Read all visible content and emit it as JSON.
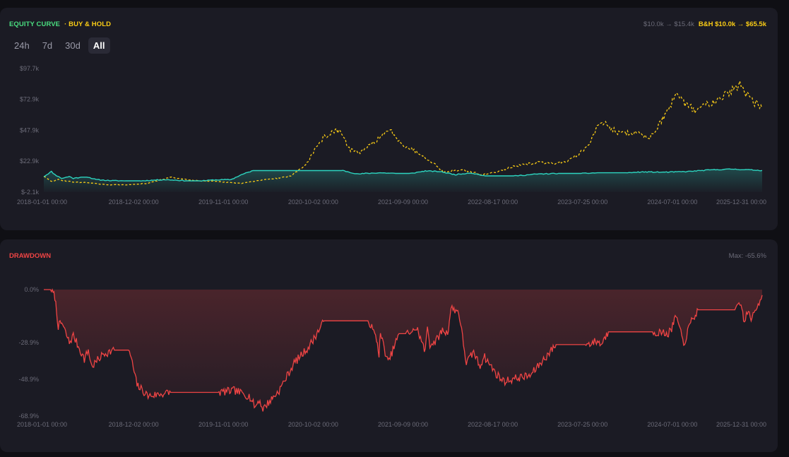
{
  "equity_panel": {
    "legend_equity": "EQUITY CURVE",
    "legend_bh": "· BUY & HOLD",
    "summary_strategy": "$10.0k → $15.4k",
    "summary_bh": "B&H $10.0k → $65.5k",
    "range_tabs": [
      {
        "label": "24h",
        "active": false
      },
      {
        "label": "7d",
        "active": false
      },
      {
        "label": "30d",
        "active": false
      },
      {
        "label": "All",
        "active": true
      }
    ]
  },
  "drawdown_panel": {
    "title": "DRAWDOWN",
    "max_label": "Max: -65.6%"
  },
  "colors": {
    "equity": "#2dd4bf",
    "bh": "#facc15",
    "drawdown": "#ef4444",
    "legend_equity": "#4ade80"
  },
  "chart_data": [
    {
      "type": "line",
      "x_tick_labels": [
        "2018-01-01 00:00",
        "2018-12-02 00:00",
        "2019-11-01 00:00",
        "2020-10-02 00:00",
        "2021-09-09 00:00",
        "2022-08-17 00:00",
        "2023-07-25 00:00",
        "2024-07-01 00:00",
        "2025-12-31 00:00"
      ],
      "y_tick_labels": [
        "$97.7k",
        "$72.9k",
        "$47.9k",
        "$22.9k",
        "$-2.1k"
      ],
      "ylim": [
        -2.1,
        97.7
      ],
      "xlim": [
        "2018-01-01",
        "2025-12-31"
      ],
      "y_unit": "$k",
      "legend": "top-left",
      "grid": false,
      "series": [
        {
          "name": "EQUITY CURVE",
          "style": "solid",
          "x": [
            "2018-01-01",
            "2018-02-01",
            "2018-02-15",
            "2018-03-15",
            "2018-04-15",
            "2018-05-01",
            "2018-06-01",
            "2018-07-01",
            "2018-08-01",
            "2018-10-01",
            "2018-12-01",
            "2019-02-01",
            "2019-05-01",
            "2019-07-01",
            "2019-08-01",
            "2019-10-01",
            "2019-12-01",
            "2020-02-01",
            "2020-03-15",
            "2020-05-01",
            "2020-08-01",
            "2020-11-01",
            "2021-02-01",
            "2021-05-01",
            "2021-07-01",
            "2021-08-01",
            "2021-10-01",
            "2021-12-01",
            "2022-02-01",
            "2022-04-01",
            "2022-06-01",
            "2022-08-01",
            "2022-10-01",
            "2022-12-01",
            "2023-02-01",
            "2023-04-01",
            "2023-07-01",
            "2023-10-01",
            "2024-01-01",
            "2024-03-01",
            "2024-05-01",
            "2024-07-01",
            "2024-09-01",
            "2024-12-01",
            "2025-03-01",
            "2025-06-01",
            "2025-09-01",
            "2025-12-31"
          ],
          "y": [
            10.5,
            14.5,
            12,
            9,
            10.5,
            9,
            10,
            10,
            8,
            7.2,
            7,
            7,
            8,
            7.5,
            7,
            7,
            7.8,
            8,
            12,
            15.3,
            15.3,
            15.3,
            15.3,
            15.3,
            12.5,
            13,
            13.5,
            13,
            13,
            15,
            14.5,
            12,
            13.5,
            11,
            11,
            11,
            12.5,
            13,
            13,
            13.5,
            13.5,
            13.5,
            14.2,
            14,
            14.5,
            15.8,
            16.5,
            15.4
          ]
        },
        {
          "name": "BUY & HOLD",
          "style": "dashed",
          "x": [
            "2018-01-01",
            "2018-02-01",
            "2018-03-01",
            "2018-05-01",
            "2018-07-01",
            "2018-09-01",
            "2018-12-01",
            "2019-03-01",
            "2019-06-01",
            "2019-07-01",
            "2019-10-01",
            "2019-12-01",
            "2020-03-15",
            "2020-06-01",
            "2020-08-01",
            "2020-10-01",
            "2020-12-01",
            "2021-01-01",
            "2021-02-15",
            "2021-04-15",
            "2021-06-01",
            "2021-07-15",
            "2021-09-01",
            "2021-11-10",
            "2022-01-01",
            "2022-03-01",
            "2022-05-01",
            "2022-06-15",
            "2022-09-01",
            "2022-11-15",
            "2023-01-01",
            "2023-03-15",
            "2023-07-01",
            "2023-09-01",
            "2023-11-01",
            "2024-01-15",
            "2024-03-15",
            "2024-06-01",
            "2024-08-01",
            "2024-10-01",
            "2024-12-01",
            "2025-01-15",
            "2025-04-01",
            "2025-05-15",
            "2025-07-15",
            "2025-09-01",
            "2025-10-06",
            "2025-11-15",
            "2025-12-31"
          ],
          "y": [
            10.5,
            6.5,
            8,
            6,
            5.5,
            4,
            3.7,
            5,
            10,
            9,
            7,
            6.5,
            5,
            7.5,
            9,
            11,
            20,
            30,
            43,
            48,
            32,
            30,
            38,
            48,
            36,
            30,
            22,
            14,
            16,
            12,
            13.5,
            18,
            22,
            21,
            23,
            33,
            55,
            45,
            46,
            42,
            60,
            75,
            64,
            68,
            75,
            80,
            85,
            72,
            65.5
          ]
        }
      ]
    },
    {
      "type": "area",
      "title": "DRAWDOWN",
      "x_tick_labels": [
        "2018-01-01 00:00",
        "2018-12-02 00:00",
        "2019-11-01 00:00",
        "2020-10-02 00:00",
        "2021-09-09 00:00",
        "2022-08-17 00:00",
        "2023-07-25 00:00",
        "2024-07-01 00:00",
        "2025-12-31 00:00"
      ],
      "y_tick_labels": [
        "0.0%",
        "-28.9%",
        "-48.9%",
        "-68.9%"
      ],
      "ylim": [
        -68.9,
        0
      ],
      "xlim": [
        "2018-01-01",
        "2025-12-31"
      ],
      "y_unit": "%",
      "grid": false,
      "series": [
        {
          "name": "DRAWDOWN",
          "x": [
            "2018-01-01",
            "2018-02-01",
            "2018-02-15",
            "2018-03-01",
            "2018-03-15",
            "2018-04-15",
            "2018-05-01",
            "2018-06-15",
            "2018-07-01",
            "2018-07-15",
            "2018-09-01",
            "2018-10-15",
            "2018-11-15",
            "2018-12-15",
            "2019-01-15",
            "2019-03-01",
            "2019-06-01",
            "2019-08-01",
            "2019-09-15",
            "2019-11-01",
            "2019-12-15",
            "2020-02-15",
            "2020-04-15",
            "2020-05-10",
            "2020-05-25",
            "2020-06-10",
            "2020-08-15",
            "2020-10-15",
            "2020-12-15",
            "2021-02-15",
            "2021-03-01",
            "2021-03-10",
            "2021-04-01",
            "2021-05-01",
            "2021-05-15",
            "2021-06-01",
            "2021-08-15",
            "2021-09-15",
            "2021-09-25",
            "2021-10-01",
            "2021-11-01",
            "2021-12-15",
            "2022-01-15",
            "2022-02-15",
            "2022-03-01",
            "2022-04-01",
            "2022-04-10",
            "2022-04-20",
            "2022-05-15",
            "2022-06-10",
            "2022-07-01",
            "2022-07-15",
            "2022-08-15",
            "2022-09-15",
            "2022-10-15",
            "2022-11-10",
            "2022-11-25",
            "2023-01-15",
            "2023-02-15",
            "2023-04-15",
            "2023-06-01",
            "2023-09-15",
            "2023-10-15",
            "2023-12-01",
            "2024-01-15",
            "2024-03-01",
            "2024-03-15",
            "2024-04-15",
            "2024-06-01",
            "2024-07-01",
            "2024-07-20",
            "2024-08-01",
            "2024-09-15",
            "2024-10-15",
            "2024-12-15",
            "2025-01-01",
            "2025-01-15",
            "2025-02-15",
            "2025-03-15",
            "2025-04-15",
            "2025-06-01",
            "2025-07-15",
            "2025-08-15",
            "2025-09-15",
            "2025-10-06",
            "2025-10-20",
            "2025-11-01",
            "2025-11-20",
            "2025-12-31"
          ],
          "y": [
            0,
            0,
            -4,
            -20,
            -18,
            -29,
            -25,
            -38,
            -33,
            -42,
            -35,
            -33,
            -33,
            -33,
            -52,
            -58,
            -56,
            -56,
            -56,
            -56,
            -56,
            -55,
            -58,
            -64,
            -60,
            -65,
            -55,
            -40,
            -31,
            -17,
            -17,
            -17,
            -17,
            -17,
            -17,
            -17,
            -17,
            -27,
            -35,
            -24,
            -40,
            -24,
            -24,
            -22,
            -22,
            -34,
            -20,
            -30,
            -28,
            -22,
            -24,
            -10,
            -12,
            -40,
            -34,
            -42,
            -36,
            -46,
            -50,
            -48,
            -47,
            -30,
            -30,
            -30,
            -30,
            -28,
            -30,
            -23,
            -23,
            -23,
            -23,
            -23,
            -23,
            -23,
            -24,
            -20,
            -14,
            -30,
            -18,
            -11,
            -11,
            -11,
            -11,
            -11,
            -8,
            -18,
            -12,
            -16,
            -3
          ]
        }
      ]
    }
  ]
}
